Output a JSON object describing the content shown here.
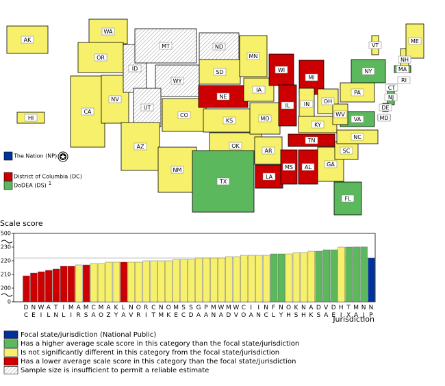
{
  "map": {
    "states": [
      {
        "label": "AK",
        "color": "#f7f06b"
      },
      {
        "label": "HI",
        "color": "#f7f06b"
      },
      {
        "label": "WA",
        "color": "#f7f06b"
      },
      {
        "label": "OR",
        "color": "#f7f06b"
      },
      {
        "label": "CA",
        "color": "#f7f06b"
      },
      {
        "label": "NV",
        "color": "#f7f06b"
      },
      {
        "label": "ID",
        "color": "hatched"
      },
      {
        "label": "MT",
        "color": "hatched"
      },
      {
        "label": "WY",
        "color": "hatched"
      },
      {
        "label": "UT",
        "color": "hatched"
      },
      {
        "label": "AZ",
        "color": "#f7f06b"
      },
      {
        "label": "CO",
        "color": "#f7f06b"
      },
      {
        "label": "NM",
        "color": "#f7f06b"
      },
      {
        "label": "ND",
        "color": "hatched"
      },
      {
        "label": "SD",
        "color": "#f7f06b"
      },
      {
        "label": "NE",
        "color": "#cc0000"
      },
      {
        "label": "KS",
        "color": "#f7f06b"
      },
      {
        "label": "OK",
        "color": "#f7f06b"
      },
      {
        "label": "TX",
        "color": "#5cb85c"
      },
      {
        "label": "MN",
        "color": "#f7f06b"
      },
      {
        "label": "IA",
        "color": "#f7f06b"
      },
      {
        "label": "MO",
        "color": "#f7f06b"
      },
      {
        "label": "AR",
        "color": "#f7f06b"
      },
      {
        "label": "LA",
        "color": "#cc0000"
      },
      {
        "label": "WI",
        "color": "#cc0000"
      },
      {
        "label": "IL",
        "color": "#cc0000"
      },
      {
        "label": "MS",
        "color": "#cc0000"
      },
      {
        "label": "MI",
        "color": "#cc0000"
      },
      {
        "label": "IN",
        "color": "#f7f06b"
      },
      {
        "label": "KY",
        "color": "#f7f06b"
      },
      {
        "label": "TN",
        "color": "#cc0000"
      },
      {
        "label": "AL",
        "color": "#cc0000"
      },
      {
        "label": "OH",
        "color": "#f7f06b"
      },
      {
        "label": "GA",
        "color": "#f7f06b"
      },
      {
        "label": "FL",
        "color": "#5cb85c"
      },
      {
        "label": "SC",
        "color": "#f7f06b"
      },
      {
        "label": "NC",
        "color": "#f7f06b"
      },
      {
        "label": "VA",
        "color": "#5cb85c"
      },
      {
        "label": "WV",
        "color": "#f7f06b"
      },
      {
        "label": "PA",
        "color": "#f7f06b"
      },
      {
        "label": "NY",
        "color": "#5cb85c"
      },
      {
        "label": "VT",
        "color": "#f7f06b"
      },
      {
        "label": "NH",
        "color": "#f7f06b"
      },
      {
        "label": "ME",
        "color": "#f7f06b"
      },
      {
        "label": "MA",
        "color": "#5cb85c"
      },
      {
        "label": "RI",
        "color": "#f7f06b"
      },
      {
        "label": "CT",
        "color": "#f7f06b"
      },
      {
        "label": "NJ",
        "color": "#5cb85c"
      },
      {
        "label": "DE",
        "color": "#5cb85c"
      },
      {
        "label": "MD",
        "color": "#f7f06b"
      }
    ],
    "legend": [
      {
        "label": "The Nation (NP)",
        "color": "#003399"
      },
      {
        "label": "District of Columbia (DC)",
        "color": "#cc0000"
      },
      {
        "label": "DoDEA (DS)",
        "color": "#5cb85c",
        "note": "1"
      }
    ]
  },
  "chart_data": {
    "type": "bar",
    "title": "Scale score",
    "x_label": "Jurisdiction",
    "categories": [
      "DC",
      "NE",
      "WI",
      "AL",
      "TN",
      "IL",
      "MI",
      "AR",
      "MS",
      "CA",
      "MO",
      "AZ",
      "KY",
      "LA",
      "NV",
      "OR",
      "RI",
      "CT",
      "NM",
      "OK",
      "ME",
      "SC",
      "SD",
      "GA",
      "PA",
      "MN",
      "WA",
      "MD",
      "WV",
      "CO",
      "IA",
      "IN",
      "NC",
      "FL",
      "NY",
      "OH",
      "KS",
      "NH",
      "AK",
      "DS",
      "VA",
      "DE",
      "HI",
      "TX",
      "MA",
      "NJ",
      "NP"
    ],
    "values": [
      209,
      211,
      212,
      213,
      214,
      216,
      216,
      217,
      217,
      218,
      218,
      219,
      219,
      219,
      219,
      219,
      220,
      220,
      220,
      220,
      221,
      221,
      221,
      222,
      222,
      222,
      222,
      223,
      223,
      224,
      224,
      224,
      224,
      225,
      225,
      225,
      226,
      226,
      227,
      227,
      228,
      228,
      230,
      230,
      232,
      232,
      222
    ],
    "colors": [
      "#cc0000",
      "#cc0000",
      "#cc0000",
      "#cc0000",
      "#cc0000",
      "#cc0000",
      "#cc0000",
      "#f7f06b",
      "#cc0000",
      "#f7f06b",
      "#f7f06b",
      "#f7f06b",
      "#f7f06b",
      "#cc0000",
      "#f7f06b",
      "#f7f06b",
      "#f7f06b",
      "#f7f06b",
      "#f7f06b",
      "#f7f06b",
      "#f7f06b",
      "#f7f06b",
      "#f7f06b",
      "#f7f06b",
      "#f7f06b",
      "#f7f06b",
      "#f7f06b",
      "#f7f06b",
      "#f7f06b",
      "#f7f06b",
      "#f7f06b",
      "#f7f06b",
      "#f7f06b",
      "#5cb85c",
      "#5cb85c",
      "#f7f06b",
      "#f7f06b",
      "#f7f06b",
      "#f7f06b",
      "#5cb85c",
      "#5cb85c",
      "#5cb85c",
      "#f7f06b",
      "#5cb85c",
      "#5cb85c",
      "#5cb85c",
      "#003399"
    ],
    "ylim": [
      0,
      500
    ],
    "yticks": [
      0,
      200,
      210,
      220,
      230,
      500
    ]
  },
  "legend": [
    {
      "label": "Focal state/jurisdiction (National Public)",
      "color": "#003399"
    },
    {
      "label": "Has a higher average scale score in this category than the focal state/jurisdiction",
      "color": "#5cb85c"
    },
    {
      "label": "Is not significantly different in this category from the focal state/jurisdiction",
      "color": "#f7f06b"
    },
    {
      "label": "Has a lower average scale score in this category than the focal state/jurisdiction",
      "color": "#cc0000"
    },
    {
      "label": "Sample size is insufficient to permit a reliable estimate",
      "color": "hatched"
    }
  ]
}
